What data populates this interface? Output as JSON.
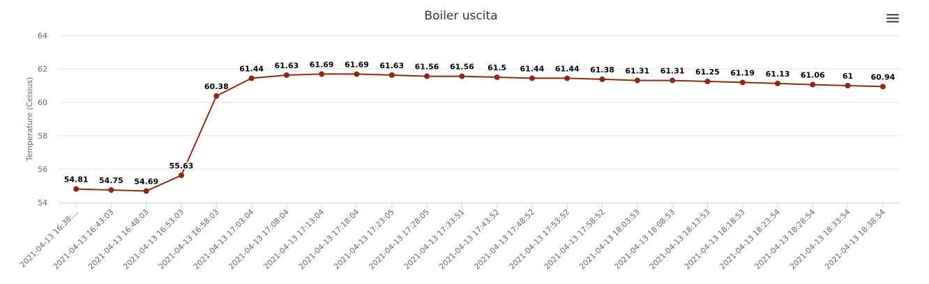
{
  "chart_data": {
    "type": "line",
    "title": "Boiler uscita",
    "xlabel": "",
    "ylabel": "Temperature (Celsius)",
    "ylim": [
      54,
      64
    ],
    "yticks": [
      54,
      56,
      58,
      60,
      62,
      64
    ],
    "grid": true,
    "legend": "none",
    "categories": [
      "2021-04-13 16:38:...",
      "2021-04-13 16:43:03",
      "2021-04-13 16:48:03",
      "2021-04-13 16:53:03",
      "2021-04-13 16:58:03",
      "2021-04-13 17:03:04",
      "2021-04-13 17:08:04",
      "2021-04-13 17:13:04",
      "2021-04-13 17:18:04",
      "2021-04-13 17:23:05",
      "2021-04-13 17:28:05",
      "2021-04-13 17:33:51",
      "2021-04-13 17:43:52",
      "2021-04-13 17:48:52",
      "2021-04-13 17:53:52",
      "2021-04-13 17:58:52",
      "2021-04-13 18:03:53",
      "2021-04-13 18:08:53",
      "2021-04-13 18:13:53",
      "2021-04-13 18:18:53",
      "2021-04-13 18:23:54",
      "2021-04-13 18:28:54",
      "2021-04-13 18:33:54",
      "2021-04-13 18:38:54"
    ],
    "series": [
      {
        "values": [
          54.81,
          54.75,
          54.69,
          55.63,
          60.38,
          61.44,
          61.63,
          61.69,
          61.69,
          61.63,
          61.56,
          61.56,
          61.5,
          61.44,
          61.44,
          61.38,
          61.31,
          61.31,
          61.25,
          61.19,
          61.13,
          61.06,
          61,
          60.94
        ],
        "color": "#8b2a12"
      }
    ]
  },
  "menu": {
    "icon": "hamburger-menu-icon"
  }
}
